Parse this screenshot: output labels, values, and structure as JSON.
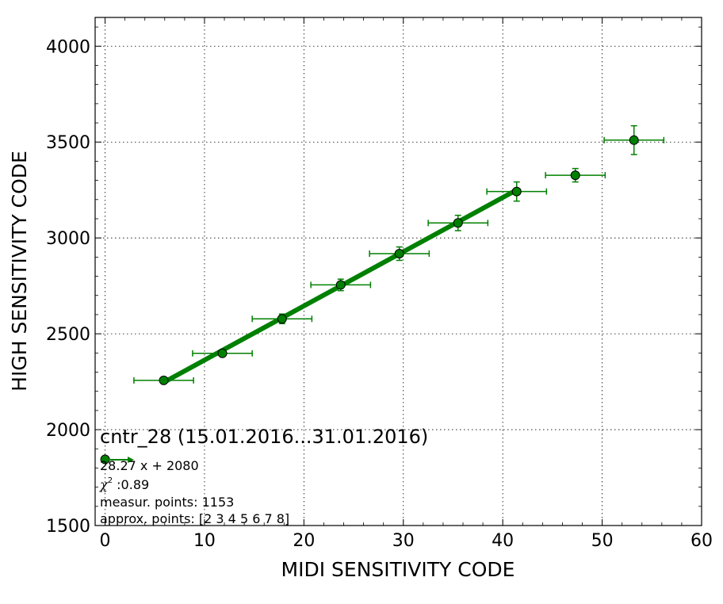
{
  "chart_data": {
    "type": "scatter",
    "xlabel": "MIDI SENSITIVITY CODE",
    "ylabel": "HIGH SENSITIVITY CODE",
    "xlim": [
      -1,
      60
    ],
    "ylim": [
      1500,
      4150
    ],
    "x_ticks": [
      "0",
      "10",
      "20",
      "30",
      "40",
      "50",
      "60"
    ],
    "y_ticks": [
      "1500",
      "2000",
      "2500",
      "3000",
      "3500",
      "4000"
    ],
    "grid": true,
    "colors": {
      "series": "#008000",
      "fit_line": "#008000",
      "marker_fill": "#008000",
      "marker_edge": "#000000"
    },
    "series": [
      {
        "points": [
          {
            "x": 0,
            "y": 1845,
            "xerr": 0,
            "yerr": 0
          },
          {
            "x": 5.9,
            "y": 2257,
            "xerr": 3.0,
            "yerr": 8
          },
          {
            "x": 11.8,
            "y": 2398,
            "xerr": 3.0,
            "yerr": 10
          },
          {
            "x": 17.8,
            "y": 2578,
            "xerr": 3.0,
            "yerr": 25
          },
          {
            "x": 23.7,
            "y": 2755,
            "xerr": 3.0,
            "yerr": 30
          },
          {
            "x": 29.6,
            "y": 2918,
            "xerr": 3.0,
            "yerr": 35
          },
          {
            "x": 35.5,
            "y": 3078,
            "xerr": 3.0,
            "yerr": 40
          },
          {
            "x": 41.4,
            "y": 3242,
            "xerr": 3.0,
            "yerr": 50
          },
          {
            "x": 47.3,
            "y": 3327,
            "xerr": 3.0,
            "yerr": 35
          },
          {
            "x": 53.2,
            "y": 3510,
            "xerr": 3.0,
            "yerr": 75
          }
        ]
      }
    ],
    "fit_line": {
      "slope": 28.27,
      "intercept": 2080,
      "x_range": [
        5.9,
        41.4
      ]
    },
    "annotations": {
      "title": "cntr_28 (15.01.2016...31.01.2016)",
      "equation": "28.27 x + 2080",
      "chi2_symbol": "χ",
      "chi2_sup": "2",
      "chi2_value": " :0.89",
      "measured_points": "measur. points: 1153",
      "approx_points": "approx. points: [2 3 4 5 6 7 8]"
    }
  }
}
